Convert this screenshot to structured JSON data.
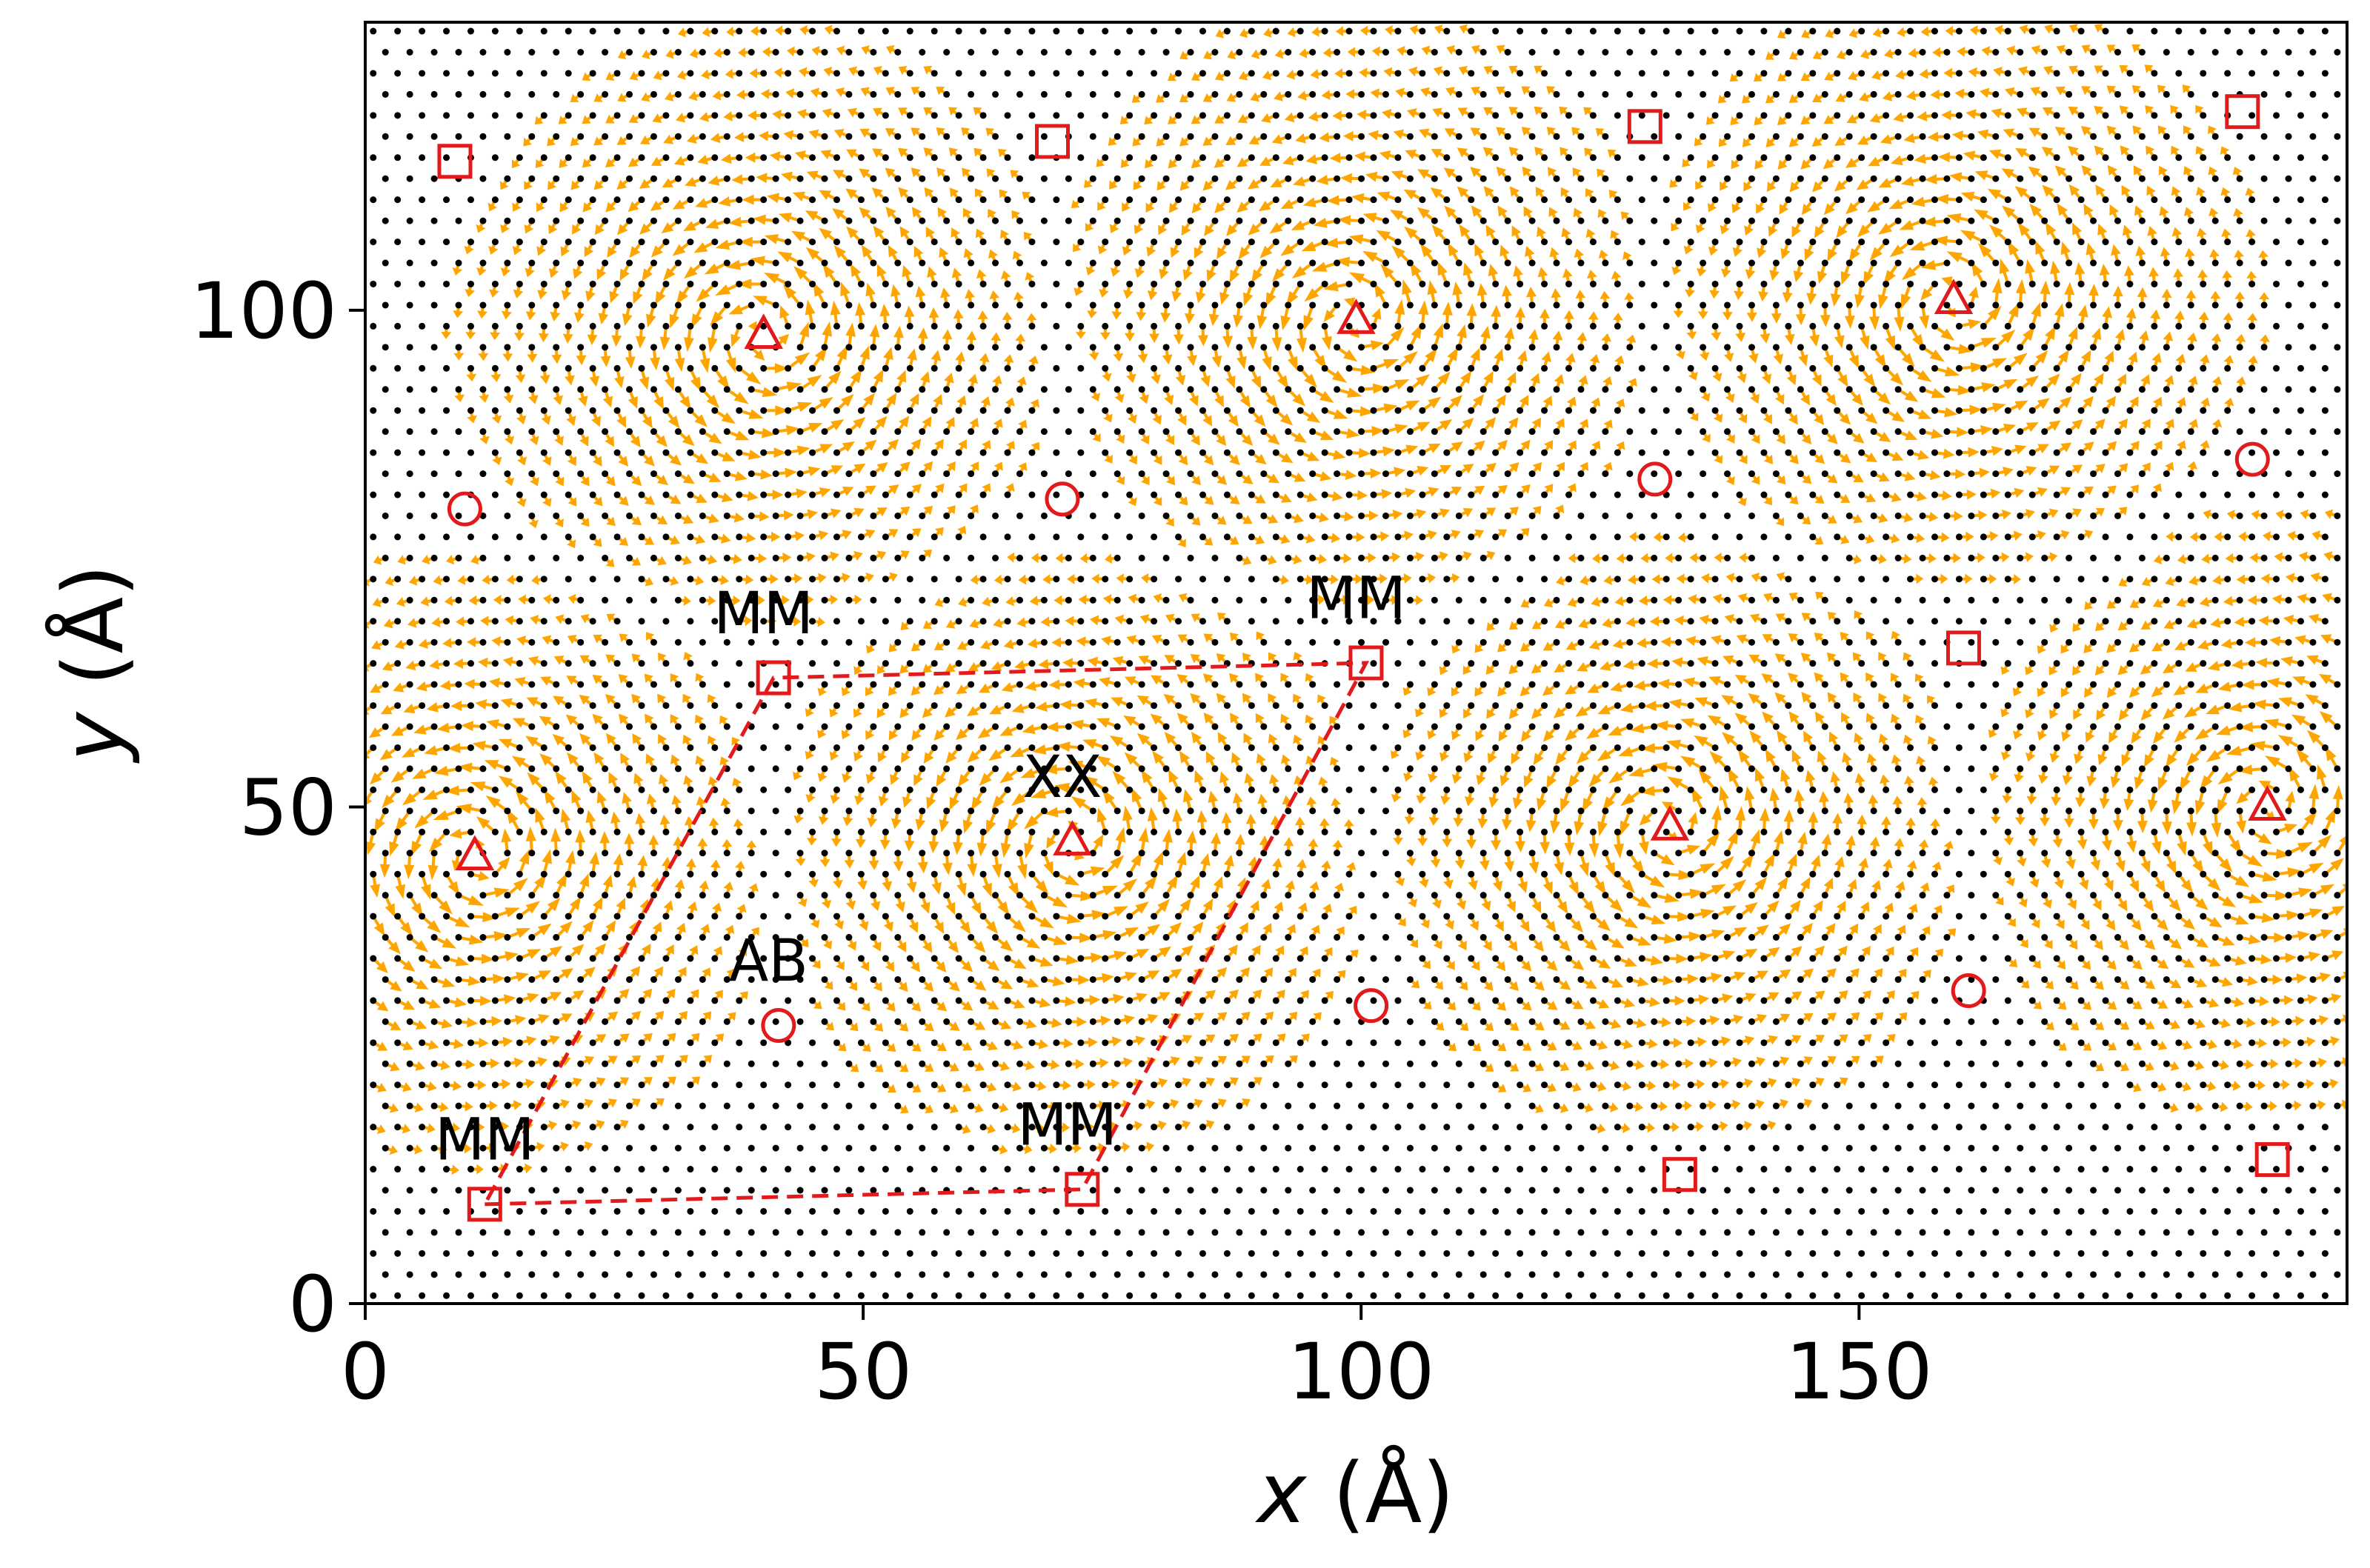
{
  "chart_data": {
    "type": "scatter",
    "title": "",
    "xlabel_var": "x",
    "xlabel_unit": " (Å)",
    "ylabel_var": "y",
    "ylabel_unit": " (Å)",
    "xlim": [
      0,
      199
    ],
    "ylim": [
      0,
      129
    ],
    "xticks": [
      0,
      50,
      100,
      150
    ],
    "yticks": [
      0,
      50,
      100
    ],
    "grid": false,
    "legend": "none",
    "colors": {
      "arrows": "#FFA500",
      "markers": "#E31A1C",
      "dots": "#000000",
      "axes": "#000000"
    },
    "vortex_centers": [
      {
        "x": 11,
        "y": 45
      },
      {
        "x": 71,
        "y": 46.5
      },
      {
        "x": 131,
        "y": 48
      },
      {
        "x": 191,
        "y": 50
      },
      {
        "x": 40,
        "y": 97.5
      },
      {
        "x": 99.5,
        "y": 99
      },
      {
        "x": 159.5,
        "y": 101
      }
    ],
    "markers": {
      "square": [
        {
          "x": 9,
          "y": 115
        },
        {
          "x": 69,
          "y": 117
        },
        {
          "x": 128.5,
          "y": 118.5
        },
        {
          "x": 188.5,
          "y": 120
        },
        {
          "x": 41,
          "y": 63
        },
        {
          "x": 100.5,
          "y": 64.5
        },
        {
          "x": 160.5,
          "y": 66
        },
        {
          "x": 12,
          "y": 10
        },
        {
          "x": 72,
          "y": 11.5
        },
        {
          "x": 132,
          "y": 13
        },
        {
          "x": 191.5,
          "y": 14.5
        }
      ],
      "triangle": [
        {
          "x": 11,
          "y": 45
        },
        {
          "x": 71,
          "y": 46.5
        },
        {
          "x": 131,
          "y": 48
        },
        {
          "x": 191,
          "y": 50
        },
        {
          "x": 40,
          "y": 97.5
        },
        {
          "x": 99.5,
          "y": 99
        },
        {
          "x": 159.5,
          "y": 101
        }
      ],
      "circle": [
        {
          "x": 10,
          "y": 80
        },
        {
          "x": 70,
          "y": 81
        },
        {
          "x": 129.5,
          "y": 83
        },
        {
          "x": 189.5,
          "y": 85
        },
        {
          "x": 41.5,
          "y": 28
        },
        {
          "x": 101,
          "y": 30
        },
        {
          "x": 161,
          "y": 31.5
        }
      ]
    },
    "unit_cell": [
      {
        "x": 12,
        "y": 10
      },
      {
        "x": 72,
        "y": 11.5
      },
      {
        "x": 100.5,
        "y": 64.5
      },
      {
        "x": 41,
        "y": 63
      }
    ],
    "annotations": [
      {
        "text": "MM",
        "x": 12,
        "y": 14.5
      },
      {
        "text": "MM",
        "x": 70.5,
        "y": 16
      },
      {
        "text": "MM",
        "x": 99.5,
        "y": 69
      },
      {
        "text": "MM",
        "x": 40,
        "y": 67.5
      },
      {
        "text": "XX",
        "x": 70,
        "y": 51
      },
      {
        "text": "AB",
        "x": 40.5,
        "y": 32.5
      }
    ]
  }
}
